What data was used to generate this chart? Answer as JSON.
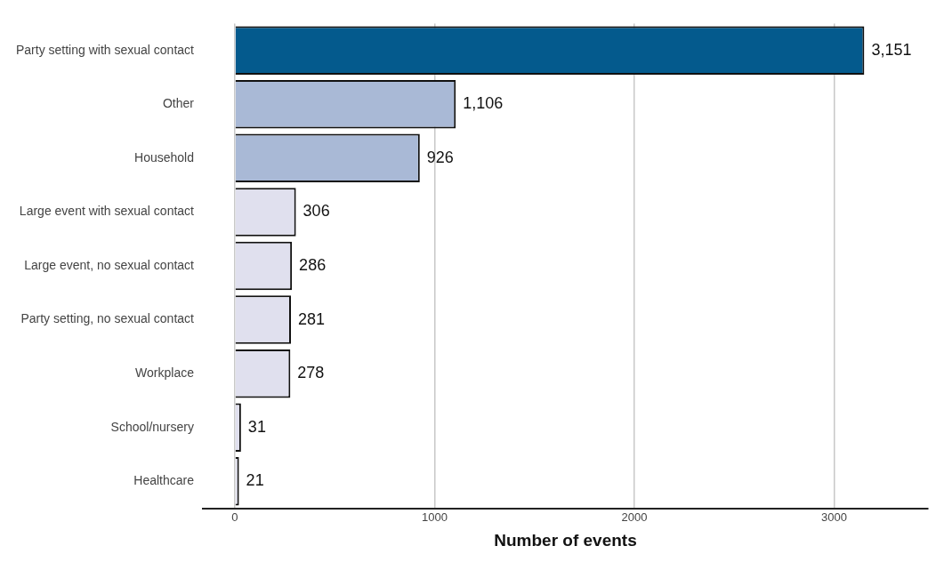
{
  "chart_data": {
    "type": "bar",
    "orientation": "horizontal",
    "xlabel": "Number of events",
    "categories": [
      "Party setting with sexual contact",
      "Other",
      "Household",
      "Large event with sexual contact",
      "Large event, no sexual contact",
      "Party setting, no sexual contact",
      "Workplace",
      "School/nursery",
      "Healthcare"
    ],
    "values": [
      3151,
      1106,
      926,
      306,
      286,
      281,
      278,
      31,
      21
    ],
    "colors": [
      "#045a8d",
      "#a9b9d6",
      "#a9b9d6",
      "#e0e0ee",
      "#e0e0ee",
      "#e0e0ee",
      "#e0e0ee",
      "#e0e0ee",
      "#e0e0ee"
    ],
    "value_labels": [
      "3,151",
      "1,106",
      "926",
      "306",
      "286",
      "281",
      "278",
      "31",
      "21"
    ],
    "xlim": [
      -160,
      3470
    ],
    "xticks": [
      0,
      1000,
      2000,
      3000
    ],
    "grid": "x",
    "legend": false
  }
}
